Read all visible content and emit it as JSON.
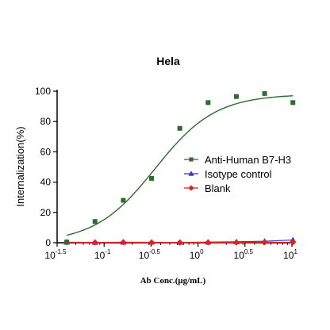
{
  "chart_data": {
    "type": "scatter",
    "title": "Hela",
    "xlabel": "Ab Conc.(μg/mL)",
    "ylabel": "Internalization(%)",
    "x_scale": "log10",
    "xlim": [
      0.0316,
      10
    ],
    "ylim": [
      0,
      100
    ],
    "x_ticks": [
      {
        "base": "10",
        "exp": "-1.5",
        "value": 0.0316
      },
      {
        "base": "10",
        "exp": "-1",
        "value": 0.1
      },
      {
        "base": "10",
        "exp": "-0.5",
        "value": 0.316
      },
      {
        "base": "10",
        "exp": "0",
        "value": 1
      },
      {
        "base": "10",
        "exp": "0.5",
        "value": 3.16
      },
      {
        "base": "10",
        "exp": "1",
        "value": 10
      }
    ],
    "y_ticks": [
      0,
      20,
      40,
      60,
      80,
      100
    ],
    "legend_position": "center-right",
    "series": [
      {
        "name": "Anti-Human B7-H3",
        "color": "#2e6b2e",
        "marker": "square",
        "x": [
          0.04,
          0.08,
          0.16,
          0.32,
          0.64,
          1.28,
          2.56,
          5.12,
          10.24
        ],
        "y": [
          0.5,
          14,
          28,
          42.5,
          75.5,
          92.5,
          96.5,
          98.5,
          92.5
        ],
        "fit": {
          "bottom": 0,
          "top": 98,
          "ec50": 0.35,
          "hill": 1.35
        }
      },
      {
        "name": "Isotype  control",
        "color": "#3333cc",
        "marker": "triangle",
        "x": [
          0.04,
          0.08,
          0.16,
          0.32,
          0.64,
          1.28,
          2.56,
          5.12,
          10.24
        ],
        "y": [
          0.3,
          0.2,
          0.3,
          0.3,
          0.2,
          0.4,
          0.6,
          1.0,
          1.8
        ]
      },
      {
        "name": "Blank",
        "color": "#dd2222",
        "marker": "diamond",
        "x": [
          0.04,
          0.08,
          0.16,
          0.32,
          0.64,
          1.28,
          2.56,
          5.12,
          10.24
        ],
        "y": [
          0.3,
          0.2,
          0.3,
          0.2,
          0.2,
          0.2,
          0.2,
          0.3,
          0.3
        ]
      }
    ]
  }
}
